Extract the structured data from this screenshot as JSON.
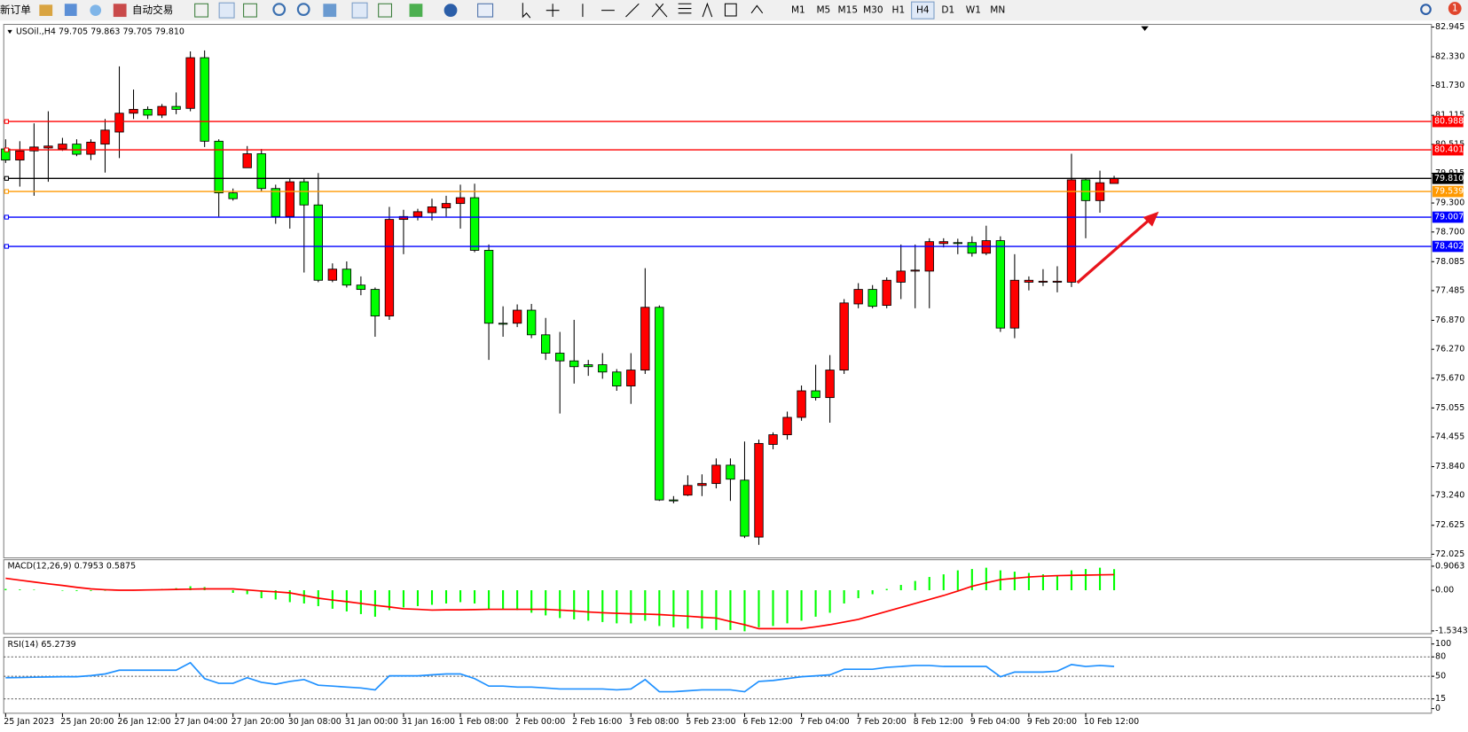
{
  "toolbar": {
    "new_order": "新订单",
    "auto_trading": "自动交易",
    "timeframes": [
      "M1",
      "M5",
      "M15",
      "M30",
      "H1",
      "H4",
      "D1",
      "W1",
      "MN"
    ],
    "active_timeframe": "H4",
    "notifications": 1
  },
  "chart_data": {
    "type": "candlestick",
    "title": "USOil.,H4  79.705 79.863 79.705 79.810",
    "x": [
      "25 Jan 2023",
      null,
      null,
      null,
      "25 Jan 20:00",
      null,
      null,
      null,
      "26 Jan 12:00",
      null,
      null,
      null,
      "27 Jan 04:00",
      null,
      null,
      null,
      "27 Jan 20:00",
      null,
      null,
      null,
      "30 Jan 08:00",
      null,
      null,
      null,
      "31 Jan 00:00",
      null,
      null,
      null,
      "31 Jan 16:00",
      null,
      null,
      null,
      "1 Feb 08:00",
      null,
      null,
      null,
      "2 Feb 00:00",
      null,
      null,
      null,
      "2 Feb 16:00",
      null,
      null,
      null,
      "3 Feb 08:00",
      null,
      null,
      null,
      "5 Feb 23:00",
      null,
      null,
      null,
      "6 Feb 12:00",
      null,
      null,
      null,
      "7 Feb 04:00",
      null,
      null,
      null,
      "7 Feb 20:00",
      null,
      null,
      null,
      "8 Feb 12:00",
      null,
      null,
      null,
      "9 Feb 04:00",
      null,
      null,
      null,
      "9 Feb 20:00",
      null,
      null,
      null,
      "10 Feb 12:00",
      null,
      null
    ],
    "ohlc": [
      [
        80.42,
        80.62,
        80.13,
        80.19
      ],
      [
        80.19,
        80.58,
        79.64,
        80.38
      ],
      [
        80.38,
        80.95,
        79.45,
        80.46
      ],
      [
        80.44,
        81.2,
        79.74,
        80.48
      ],
      [
        80.42,
        80.65,
        80.38,
        80.52
      ],
      [
        80.52,
        80.62,
        80.27,
        80.31
      ],
      [
        80.31,
        80.62,
        80.19,
        80.56
      ],
      [
        80.52,
        81.04,
        79.93,
        80.81
      ],
      [
        80.77,
        82.13,
        80.23,
        81.16
      ],
      [
        81.16,
        81.65,
        81.04,
        81.24
      ],
      [
        81.24,
        81.3,
        81.04,
        81.12
      ],
      [
        81.12,
        81.35,
        81.06,
        81.3
      ],
      [
        81.3,
        81.59,
        81.14,
        81.24
      ],
      [
        81.26,
        82.44,
        81.2,
        82.31
      ],
      [
        82.31,
        82.46,
        80.46,
        80.58
      ],
      [
        80.58,
        80.62,
        79.02,
        79.51
      ],
      [
        79.51,
        79.6,
        79.35,
        79.39
      ],
      [
        80.03,
        80.48,
        80.03,
        80.32
      ],
      [
        80.32,
        80.42,
        79.55,
        79.6
      ],
      [
        79.6,
        79.68,
        78.87,
        79.02
      ],
      [
        79.02,
        79.8,
        78.77,
        79.74
      ],
      [
        79.74,
        79.8,
        77.86,
        79.26
      ],
      [
        79.26,
        79.92,
        77.66,
        77.7
      ],
      [
        77.7,
        78.05,
        77.66,
        77.93
      ],
      [
        77.93,
        78.09,
        77.55,
        77.6
      ],
      [
        77.6,
        77.78,
        77.39,
        77.51
      ],
      [
        77.51,
        77.55,
        76.53,
        76.96
      ],
      [
        76.96,
        79.22,
        76.88,
        78.96
      ],
      [
        78.96,
        79.16,
        78.24,
        79.02
      ],
      [
        79.02,
        79.18,
        78.94,
        79.12
      ],
      [
        79.1,
        79.39,
        78.94,
        79.22
      ],
      [
        79.2,
        79.45,
        79.02,
        79.29
      ],
      [
        79.29,
        79.68,
        78.77,
        79.41
      ],
      [
        79.41,
        79.7,
        78.28,
        78.32
      ],
      [
        78.32,
        78.44,
        76.05,
        76.81
      ],
      [
        76.81,
        77.16,
        76.53,
        76.79
      ],
      [
        76.81,
        77.2,
        76.73,
        77.08
      ],
      [
        77.08,
        77.21,
        76.5,
        76.57
      ],
      [
        76.57,
        76.92,
        76.05,
        76.19
      ],
      [
        76.19,
        76.63,
        74.94,
        76.03
      ],
      [
        76.03,
        76.88,
        75.56,
        75.91
      ],
      [
        75.95,
        76.05,
        75.72,
        75.91
      ],
      [
        75.95,
        76.19,
        75.66,
        75.8
      ],
      [
        75.8,
        75.86,
        75.41,
        75.51
      ],
      [
        75.51,
        76.19,
        75.14,
        75.84
      ],
      [
        75.84,
        77.95,
        75.76,
        77.14
      ],
      [
        77.14,
        77.18,
        73.13,
        73.15
      ],
      [
        73.15,
        73.23,
        73.08,
        73.13
      ],
      [
        73.25,
        73.66,
        73.23,
        73.45
      ],
      [
        73.45,
        73.68,
        73.23,
        73.49
      ],
      [
        73.49,
        74.01,
        73.39,
        73.87
      ],
      [
        73.87,
        74.01,
        73.13,
        73.58
      ],
      [
        73.56,
        74.36,
        72.36,
        72.4
      ],
      [
        72.38,
        74.4,
        72.22,
        74.32
      ],
      [
        74.3,
        74.55,
        74.2,
        74.5
      ],
      [
        74.5,
        74.98,
        74.4,
        74.86
      ],
      [
        74.86,
        75.52,
        74.79,
        75.41
      ],
      [
        75.41,
        75.95,
        75.21,
        75.27
      ],
      [
        75.27,
        76.15,
        74.75,
        75.84
      ],
      [
        75.84,
        77.31,
        75.76,
        77.23
      ],
      [
        77.21,
        77.64,
        77.12,
        77.51
      ],
      [
        77.51,
        77.6,
        77.12,
        77.16
      ],
      [
        77.18,
        77.76,
        77.12,
        77.7
      ],
      [
        77.66,
        78.44,
        77.31,
        77.89
      ],
      [
        77.89,
        78.44,
        77.12,
        77.91
      ],
      [
        77.89,
        78.57,
        77.12,
        78.5
      ],
      [
        78.46,
        78.57,
        78.38,
        78.5
      ],
      [
        78.48,
        78.56,
        78.24,
        78.46
      ],
      [
        78.48,
        78.61,
        78.19,
        78.26
      ],
      [
        78.26,
        78.83,
        78.22,
        78.52
      ],
      [
        78.52,
        78.61,
        76.63,
        76.71
      ],
      [
        76.71,
        78.24,
        76.5,
        77.7
      ],
      [
        77.66,
        77.78,
        77.49,
        77.7
      ],
      [
        77.66,
        77.93,
        77.58,
        77.68
      ],
      [
        77.66,
        77.99,
        77.45,
        77.68
      ],
      [
        77.66,
        80.32,
        77.56,
        79.78
      ],
      [
        79.78,
        79.82,
        78.57,
        79.35
      ],
      [
        79.35,
        79.97,
        79.1,
        79.72
      ],
      [
        79.705,
        79.863,
        79.705,
        79.81
      ]
    ],
    "up_color": "#ff0000",
    "down_color": "#00ff00",
    "ylim": [
      71.95,
      83.0
    ],
    "yticks": [
      82.945,
      {
        "value": 82.33,
        "label": "82.330"
      },
      {
        "value": 81.73,
        "label": "81.730"
      },
      81.115,
      80.515,
      79.915,
      {
        "value": 79.3,
        "label": "79.300"
      },
      {
        "value": 78.7,
        "label": "78.700"
      },
      78.085,
      77.485,
      {
        "value": 76.87,
        "label": "76.870"
      },
      {
        "value": 76.27,
        "label": "76.270"
      },
      {
        "value": 75.67,
        "label": "75.670"
      },
      75.055,
      74.455,
      {
        "value": 73.84,
        "label": "73.840"
      },
      {
        "value": 73.24,
        "label": "73.240"
      },
      72.625,
      72.025
    ],
    "levels": [
      {
        "value": 80.988,
        "color": "#ff0000"
      },
      {
        "value": 80.401,
        "color": "#ff0000"
      },
      {
        "value": 79.81,
        "label": "79.810",
        "color": "#000000"
      },
      {
        "value": 79.539,
        "color": "#ff9900"
      },
      {
        "value": 79.007,
        "color": "#0000ff"
      },
      {
        "value": 78.402,
        "color": "#0000ff"
      }
    ],
    "macd": {
      "title": "MACD(12,26,9) 0.7953 0.5875",
      "ylim": [
        -1.64,
        1.15
      ],
      "yticks": [
        0.9063,
        {
          "value": 0,
          "label": "0.00"
        },
        -1.5343
      ],
      "hist_color": "#00ff00",
      "signal_color": "#ff0000",
      "hist": [
        0.05,
        0.03,
        0.02,
        0,
        -0.02,
        -0.03,
        -0.03,
        -0.02,
        0,
        0.02,
        0.03,
        0.05,
        0.08,
        0.15,
        0.12,
        0,
        -0.1,
        -0.15,
        -0.3,
        -0.35,
        -0.45,
        -0.5,
        -0.6,
        -0.7,
        -0.8,
        -0.9,
        -1.0,
        -0.75,
        -0.65,
        -0.6,
        -0.55,
        -0.5,
        -0.45,
        -0.5,
        -0.7,
        -0.7,
        -0.75,
        -0.85,
        -0.95,
        -1.05,
        -1.1,
        -1.15,
        -1.2,
        -1.25,
        -1.25,
        -1.15,
        -1.35,
        -1.4,
        -1.45,
        -1.45,
        -1.5,
        -1.5,
        -1.55,
        -1.4,
        -1.35,
        -1.25,
        -1.15,
        -1.0,
        -0.85,
        -0.5,
        -0.3,
        -0.15,
        0.05,
        0.2,
        0.35,
        0.5,
        0.6,
        0.75,
        0.8,
        0.85,
        0.75,
        0.7,
        0.65,
        0.6,
        0.55,
        0.75,
        0.8,
        0.85,
        0.7953
      ],
      "signal": [
        0.45,
        0.38,
        0.31,
        0.24,
        0.18,
        0.11,
        0.05,
        0.02,
        0,
        0,
        0.01,
        0.02,
        0.03,
        0.04,
        0.05,
        0.05,
        0.05,
        0.01,
        -0.03,
        -0.06,
        -0.1,
        -0.2,
        -0.3,
        -0.37,
        -0.43,
        -0.5,
        -0.57,
        -0.63,
        -0.7,
        -0.72,
        -0.75,
        -0.74,
        -0.74,
        -0.73,
        -0.72,
        -0.72,
        -0.72,
        -0.72,
        -0.72,
        -0.75,
        -0.78,
        -0.82,
        -0.85,
        -0.87,
        -0.89,
        -0.9,
        -0.92,
        -0.95,
        -0.98,
        -1.02,
        -1.05,
        -1.18,
        -1.3,
        -1.45,
        -1.45,
        -1.45,
        -1.45,
        -1.38,
        -1.3,
        -1.2,
        -1.1,
        -0.95,
        -0.8,
        -0.65,
        -0.5,
        -0.35,
        -0.2,
        -0.03,
        0.15,
        0.28,
        0.4,
        0.45,
        0.5,
        0.53,
        0.55,
        0.56,
        0.57,
        0.58,
        0.5875
      ]
    },
    "rsi": {
      "title": "RSI(14) 65.2739",
      "ylim": [
        -7.2,
        110.1
      ],
      "yticks": [
        100,
        80,
        50,
        15,
        0
      ],
      "levels": [
        80,
        50,
        15
      ],
      "color": "#1e90ff",
      "values": [
        47.8,
        48,
        48.5,
        49,
        49.3,
        49.3,
        51,
        53.6,
        59.4,
        59.4,
        59.4,
        59.4,
        59.4,
        71,
        46.4,
        39.1,
        39.1,
        47.8,
        40.6,
        37.7,
        42,
        44.9,
        36.2,
        34.8,
        33.3,
        31.9,
        29,
        50.7,
        50.7,
        50.7,
        52.2,
        53.6,
        53.6,
        46.4,
        34.8,
        34.8,
        33.3,
        33.3,
        31.9,
        30.4,
        30.4,
        30.4,
        30.4,
        29,
        30.4,
        44.9,
        26.1,
        26.1,
        27.5,
        29,
        29,
        29,
        26.1,
        42,
        43.5,
        46.4,
        49.3,
        50.7,
        52.2,
        60.9,
        60.9,
        60.9,
        63.8,
        65.2,
        66.7,
        66.7,
        65.2,
        65.2,
        65.2,
        65.2,
        49.3,
        56.5,
        56.5,
        56.5,
        58,
        68.1,
        65.2,
        66.7,
        65.2739
      ]
    }
  }
}
